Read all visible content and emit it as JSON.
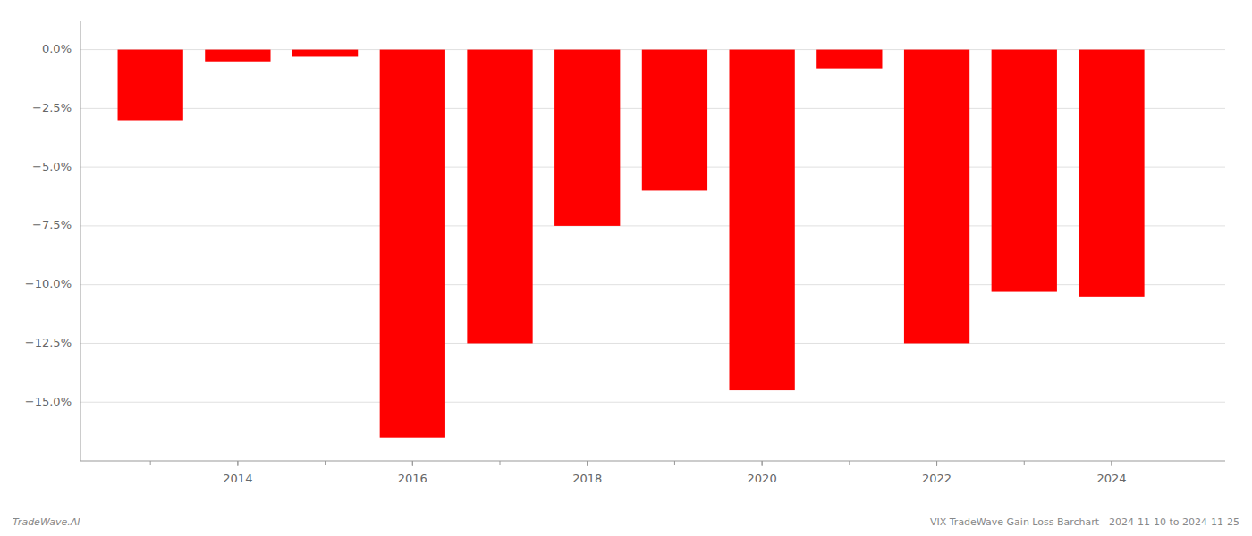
{
  "chart_data": {
    "type": "bar",
    "x": [
      2013,
      2014,
      2015,
      2016,
      2017,
      2018,
      2019,
      2020,
      2021,
      2022,
      2023,
      2024
    ],
    "values": [
      -3.0,
      -0.5,
      -0.3,
      -16.5,
      -12.5,
      -7.5,
      -6.0,
      -14.5,
      -0.8,
      -12.5,
      -10.3,
      -10.5
    ],
    "color": "#ff0000",
    "xlim": [
      2012.2,
      2025.3
    ],
    "xticks": [
      2014,
      2016,
      2018,
      2020,
      2022,
      2024
    ],
    "ylim": [
      -17.5,
      1.2
    ],
    "yticks": [
      {
        "value": 0.0,
        "label": "0.0%"
      },
      {
        "value": -2.5,
        "label": "−2.5%"
      },
      {
        "value": -5.0,
        "label": "−5.0%"
      },
      {
        "value": -7.5,
        "label": "−7.5%"
      },
      {
        "value": -10.0,
        "label": "−10.0%"
      },
      {
        "value": -12.5,
        "label": "−12.5%"
      },
      {
        "value": -15.0,
        "label": "−15.0%"
      }
    ],
    "grid": true,
    "annotations": [
      "TradeWave.AI",
      "VIX TradeWave Gain Loss Barchart - 2024-11-10 to 2024-11-25"
    ]
  }
}
